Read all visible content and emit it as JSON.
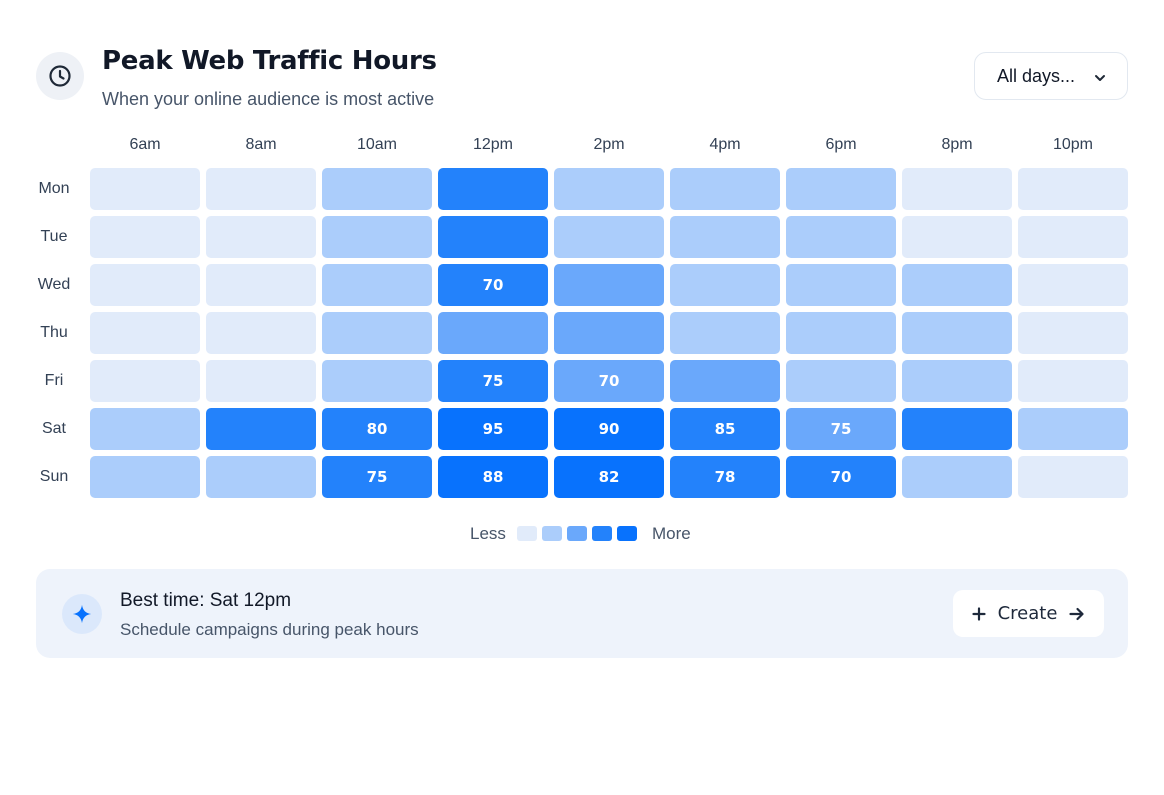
{
  "header": {
    "icon": "clock-icon",
    "title": "Peak Web Traffic Hours",
    "subtitle": "When your online audience is most active",
    "filter_label": "All days...",
    "filter_icon": "chevron-down-icon"
  },
  "chart_data": {
    "type": "heatmap",
    "columns": [
      "6am",
      "8am",
      "10am",
      "12pm",
      "2pm",
      "4pm",
      "6pm",
      "8pm",
      "10pm"
    ],
    "rows": [
      "Mon",
      "Tue",
      "Wed",
      "Thu",
      "Fri",
      "Sat",
      "Sun"
    ],
    "levels": [
      [
        1,
        1,
        2,
        4,
        2,
        2,
        2,
        1,
        1
      ],
      [
        1,
        1,
        2,
        4,
        2,
        2,
        2,
        1,
        1
      ],
      [
        1,
        1,
        2,
        4,
        3,
        2,
        2,
        2,
        1
      ],
      [
        1,
        1,
        2,
        3,
        3,
        2,
        2,
        2,
        1
      ],
      [
        1,
        1,
        2,
        4,
        3,
        3,
        2,
        2,
        1
      ],
      [
        2,
        4,
        4,
        5,
        5,
        4,
        3,
        4,
        2
      ],
      [
        2,
        2,
        4,
        5,
        5,
        4,
        4,
        2,
        1
      ]
    ],
    "labels": [
      [
        "",
        "",
        "",
        "",
        "",
        "",
        "",
        "",
        ""
      ],
      [
        "",
        "",
        "",
        "",
        "",
        "",
        "",
        "",
        ""
      ],
      [
        "",
        "",
        "",
        "70",
        "",
        "",
        "",
        "",
        ""
      ],
      [
        "",
        "",
        "",
        "",
        "",
        "",
        "",
        "",
        ""
      ],
      [
        "",
        "",
        "",
        "75",
        "70",
        "",
        "",
        "",
        ""
      ],
      [
        "",
        "",
        "80",
        "95",
        "90",
        "85",
        "75",
        "",
        ""
      ],
      [
        "",
        "",
        "75",
        "88",
        "82",
        "78",
        "70",
        "",
        ""
      ]
    ],
    "legend": {
      "less_label": "Less",
      "more_label": "More",
      "colors": [
        "#e1ebfa",
        "#abcdfb",
        "#6aa8fb",
        "#2382fb",
        "#0872fd"
      ]
    }
  },
  "insight": {
    "icon": "sparkle-icon",
    "title": "Best time: Sat 12pm",
    "subtitle": "Schedule campaigns during peak hours",
    "button_label": "Create",
    "button_icon_left": "plus-icon",
    "button_icon_right": "arrow-right-icon"
  },
  "colors": {
    "accent": "#0872fd",
    "banner_bg": "#eef3fb"
  }
}
